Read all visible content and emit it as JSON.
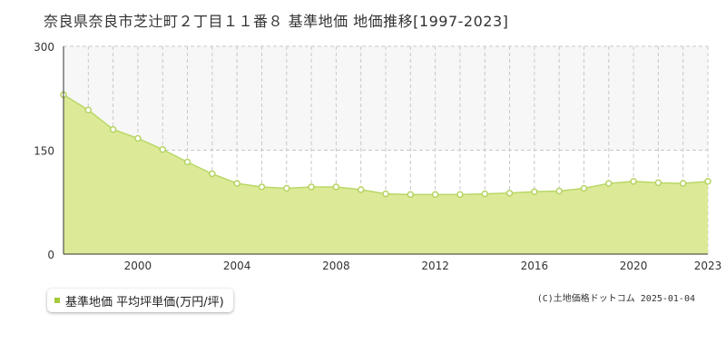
{
  "title": "奈良県奈良市芝辻町２丁目１１番８ 基準地価 地価推移[1997-2023]",
  "legend": {
    "label": "基準地価 平均坪単価(万円/坪)"
  },
  "copyright": "(C)土地価格ドットコム 2025-01-04",
  "colors": {
    "fill": "#dcea98",
    "line": "#b9d766",
    "point_stroke": "#b5d35f",
    "point_fill": "#ffffff",
    "swatch": "#a6c93c",
    "grid": "#c8c8c8",
    "upper_band": "#f7f7f7"
  },
  "chart_data": {
    "type": "area",
    "x": [
      1997,
      1998,
      1999,
      2000,
      2001,
      2002,
      2003,
      2004,
      2005,
      2006,
      2007,
      2008,
      2009,
      2010,
      2011,
      2012,
      2013,
      2014,
      2015,
      2016,
      2017,
      2018,
      2019,
      2020,
      2021,
      2022,
      2023
    ],
    "series": [
      {
        "values": [
          230,
          208,
          180,
          167,
          151,
          133,
          116,
          102,
          97,
          95,
          97,
          97,
          93,
          87,
          86,
          86,
          86,
          87,
          88,
          90,
          91,
          95,
          102,
          105,
          103,
          102,
          105
        ]
      }
    ],
    "xticks": [
      2000,
      2004,
      2008,
      2012,
      2016,
      2020,
      2023
    ],
    "yticks": [
      0,
      150,
      300
    ],
    "xlim": [
      1997,
      2023
    ],
    "ylim": [
      0,
      300
    ],
    "grid": true
  }
}
